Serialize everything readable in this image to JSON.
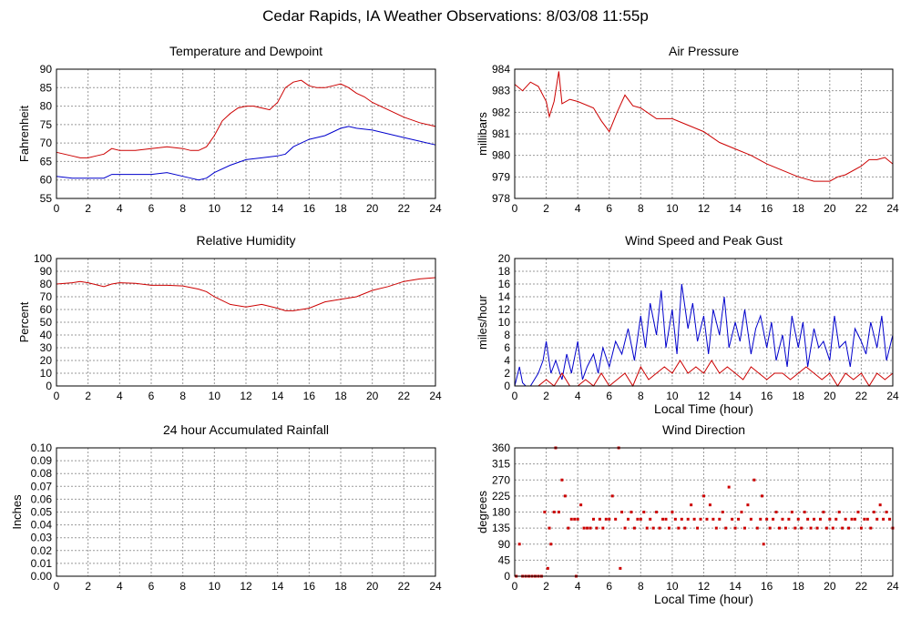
{
  "title": "Cedar Rapids, IA Weather Observations: 8/03/08 11:55p",
  "chart_data": [
    {
      "id": "temp",
      "type": "line",
      "title": "Temperature and Dewpoint",
      "xlabel": "",
      "ylabel": "Fahrenheit",
      "xlim": [
        0,
        24
      ],
      "ylim": [
        55,
        90
      ],
      "xticks": [
        0,
        2,
        4,
        6,
        8,
        10,
        12,
        14,
        16,
        18,
        20,
        22,
        24
      ],
      "yticks": [
        55,
        60,
        65,
        70,
        75,
        80,
        85,
        90
      ],
      "grid": true,
      "colors": {
        "series": [
          "#cc0000",
          "#0000cc"
        ]
      },
      "series": [
        {
          "color": "#cc0000",
          "x": [
            0,
            0.5,
            1,
            1.5,
            2,
            2.5,
            3,
            3.5,
            4,
            5,
            6,
            7,
            8,
            8.5,
            9,
            9.5,
            10,
            10.5,
            11,
            11.5,
            12,
            12.5,
            13,
            13.5,
            14,
            14.5,
            15,
            15.5,
            16,
            16.5,
            17,
            17.5,
            18,
            18.5,
            19,
            19.5,
            20,
            21,
            22,
            23,
            24
          ],
          "y": [
            67.5,
            67,
            66.5,
            66,
            66,
            66.5,
            67,
            68.5,
            68,
            68,
            68.5,
            69,
            68.5,
            68,
            68,
            69,
            72,
            76,
            78,
            79.5,
            80,
            80,
            79.5,
            79,
            81,
            85,
            86.5,
            87,
            85.5,
            85,
            85,
            85.5,
            86,
            85,
            83.5,
            82.5,
            81,
            79,
            77,
            75.5,
            74.5
          ]
        },
        {
          "color": "#0000cc",
          "x": [
            0,
            1,
            2,
            3,
            3.5,
            4,
            5,
            6,
            7,
            8,
            8.5,
            9,
            9.5,
            10,
            11,
            12,
            13,
            14,
            14.5,
            15,
            15.5,
            16,
            17,
            17.5,
            18,
            18.5,
            19,
            20,
            21,
            22,
            23,
            24
          ],
          "y": [
            61,
            60.5,
            60.5,
            60.5,
            61.5,
            61.5,
            61.5,
            61.5,
            62,
            61,
            60.5,
            60,
            60.5,
            62,
            64,
            65.5,
            66,
            66.5,
            67,
            69,
            70,
            71,
            72,
            73,
            74,
            74.5,
            74,
            73.5,
            72.5,
            71.5,
            70.5,
            69.5
          ]
        }
      ]
    },
    {
      "id": "pressure",
      "type": "line",
      "title": "Air Pressure",
      "xlabel": "",
      "ylabel": "millibars",
      "xlim": [
        0,
        24
      ],
      "ylim": [
        978,
        984
      ],
      "xticks": [
        0,
        2,
        4,
        6,
        8,
        10,
        12,
        14,
        16,
        18,
        20,
        22,
        24
      ],
      "yticks": [
        978,
        979,
        980,
        981,
        982,
        983,
        984
      ],
      "grid": true,
      "colors": {
        "series": [
          "#cc0000"
        ]
      },
      "series": [
        {
          "color": "#cc0000",
          "x": [
            0,
            0.5,
            1,
            1.5,
            2,
            2.2,
            2.5,
            2.8,
            3,
            3.5,
            4,
            5,
            5.5,
            6,
            6.5,
            7,
            7.5,
            8,
            9,
            10,
            11,
            12,
            13,
            14,
            15,
            16,
            17,
            18,
            18.5,
            19,
            20,
            20.5,
            21,
            22,
            22.5,
            23,
            23.5,
            24
          ],
          "y": [
            983.3,
            983,
            983.4,
            983.2,
            982.5,
            981.8,
            982.5,
            983.9,
            982.4,
            982.6,
            982.5,
            982.2,
            981.6,
            981.1,
            982,
            982.8,
            982.3,
            982.2,
            981.7,
            981.7,
            981.4,
            981.1,
            980.6,
            980.3,
            980,
            979.6,
            979.3,
            979,
            978.9,
            978.8,
            978.8,
            979,
            979.1,
            979.5,
            979.8,
            979.8,
            979.9,
            979.6
          ]
        }
      ]
    },
    {
      "id": "humidity",
      "type": "line",
      "title": "Relative Humidity",
      "xlabel": "",
      "ylabel": "Percent",
      "xlim": [
        0,
        24
      ],
      "ylim": [
        0,
        100
      ],
      "xticks": [
        0,
        2,
        4,
        6,
        8,
        10,
        12,
        14,
        16,
        18,
        20,
        22,
        24
      ],
      "yticks": [
        0,
        10,
        20,
        30,
        40,
        50,
        60,
        70,
        80,
        90,
        100
      ],
      "grid": true,
      "colors": {
        "series": [
          "#cc0000"
        ]
      },
      "series": [
        {
          "color": "#cc0000",
          "x": [
            0,
            1,
            1.5,
            2,
            3,
            3.5,
            4,
            5,
            6,
            7,
            8,
            9,
            9.5,
            10,
            11,
            12,
            13,
            14,
            14.5,
            15,
            16,
            17,
            18,
            19,
            20,
            21,
            22,
            23,
            24
          ],
          "y": [
            80,
            81,
            82,
            81,
            78,
            80,
            81,
            80.5,
            79,
            79,
            78.5,
            76,
            74,
            70,
            64,
            62,
            64,
            61,
            59,
            59,
            61,
            66,
            68,
            70,
            75,
            78,
            82,
            84,
            85
          ]
        }
      ]
    },
    {
      "id": "wind",
      "type": "line",
      "title": "Wind Speed and Peak Gust",
      "xlabel": "Local Time (hour)",
      "ylabel": "miles/hour",
      "xlim": [
        0,
        24
      ],
      "ylim": [
        0,
        20
      ],
      "xticks": [
        0,
        2,
        4,
        6,
        8,
        10,
        12,
        14,
        16,
        18,
        20,
        22,
        24
      ],
      "yticks": [
        0,
        2,
        4,
        6,
        8,
        10,
        12,
        14,
        16,
        18,
        20
      ],
      "grid": true,
      "colors": {
        "series": [
          "#0000cc",
          "#cc0000"
        ]
      },
      "series": [
        {
          "color": "#0000cc",
          "x": [
            0,
            0.3,
            0.5,
            0.7,
            1,
            1.5,
            1.8,
            2,
            2.3,
            2.6,
            3,
            3.3,
            3.6,
            4,
            4.3,
            4.6,
            5,
            5.3,
            5.6,
            6,
            6.4,
            6.8,
            7.2,
            7.6,
            8,
            8.3,
            8.6,
            9,
            9.3,
            9.6,
            10,
            10.3,
            10.6,
            11,
            11.3,
            11.6,
            12,
            12.3,
            12.6,
            13,
            13.3,
            13.6,
            14,
            14.3,
            14.6,
            15,
            15.3,
            15.6,
            16,
            16.3,
            16.6,
            17,
            17.3,
            17.6,
            18,
            18.3,
            18.6,
            19,
            19.3,
            19.6,
            20,
            20.3,
            20.6,
            21,
            21.3,
            21.6,
            22,
            22.3,
            22.6,
            23,
            23.3,
            23.6,
            24
          ],
          "y": [
            0,
            3,
            0.5,
            0,
            0,
            2,
            4,
            7,
            2,
            4,
            1,
            5,
            2,
            7,
            1,
            3,
            5,
            2,
            6,
            3,
            7,
            5,
            9,
            4,
            11,
            6,
            13,
            8,
            15,
            6,
            12,
            5,
            16,
            9,
            13,
            7,
            11,
            5,
            12,
            8,
            14,
            6,
            10,
            7,
            12,
            5,
            9,
            11,
            6,
            10,
            4,
            8,
            3,
            11,
            6,
            10,
            3,
            9,
            6,
            7,
            4,
            11,
            6,
            7,
            3,
            9,
            7,
            5,
            10,
            6,
            11,
            4,
            8
          ]
        },
        {
          "color": "#cc0000",
          "x": [
            0,
            1.5,
            2,
            2.5,
            3,
            3.5,
            4,
            4.5,
            5,
            5.5,
            6,
            6.5,
            7,
            7.5,
            8,
            8.5,
            9,
            9.5,
            10,
            10.5,
            11,
            11.5,
            12,
            12.5,
            13,
            13.5,
            14,
            14.5,
            15,
            15.5,
            16,
            16.5,
            17,
            17.5,
            18,
            18.5,
            19,
            19.5,
            20,
            20.5,
            21,
            21.5,
            22,
            22.5,
            23,
            23.5,
            24
          ],
          "y": [
            0,
            0,
            1,
            0,
            2,
            0,
            0,
            1,
            0,
            2,
            0,
            1,
            2,
            0,
            3,
            1,
            2,
            3,
            2,
            4,
            2,
            3,
            2,
            4,
            2,
            3,
            2,
            1,
            3,
            2,
            1,
            2,
            2,
            1,
            2,
            3,
            2,
            1,
            2,
            0,
            2,
            1,
            2,
            0,
            2,
            1,
            2
          ]
        }
      ]
    },
    {
      "id": "rain",
      "type": "line",
      "title": "24 hour Accumulated Rainfall",
      "xlabel": "",
      "ylabel": "Inches",
      "xlim": [
        0,
        24
      ],
      "ylim": [
        0,
        0.1
      ],
      "xticks": [
        0,
        2,
        4,
        6,
        8,
        10,
        12,
        14,
        16,
        18,
        20,
        22,
        24
      ],
      "yticks": [
        "0.00",
        "0.01",
        "0.02",
        "0.03",
        "0.04",
        "0.05",
        "0.06",
        "0.07",
        "0.08",
        "0.09",
        "0.10"
      ],
      "grid": true,
      "colors": {
        "series": [
          "#cc0000"
        ]
      },
      "series": [
        {
          "color": "#cc0000",
          "x": [
            0,
            24
          ],
          "y": [
            0,
            0
          ]
        }
      ]
    },
    {
      "id": "direction",
      "type": "scatter",
      "title": "Wind Direction",
      "xlabel": "Local Time (hour)",
      "ylabel": "degrees",
      "xlim": [
        0,
        24
      ],
      "ylim": [
        0,
        360
      ],
      "xticks": [
        0,
        2,
        4,
        6,
        8,
        10,
        12,
        14,
        16,
        18,
        20,
        22,
        24
      ],
      "yticks": [
        0,
        45,
        90,
        135,
        180,
        225,
        270,
        315,
        360
      ],
      "grid": true,
      "colors": {
        "series": [
          "#cc0000"
        ]
      },
      "series": [
        {
          "color": "#cc0000",
          "x": [
            0.1,
            0.3,
            0.5,
            0.7,
            0.9,
            1.1,
            1.3,
            1.5,
            1.7,
            1.9,
            2.1,
            2.2,
            2.3,
            2.5,
            2.6,
            2.8,
            3.0,
            3.2,
            3.4,
            3.6,
            3.8,
            3.9,
            4.0,
            4.2,
            4.4,
            4.6,
            4.8,
            5.0,
            5.2,
            5.4,
            5.6,
            5.8,
            6.0,
            6.2,
            6.4,
            6.6,
            6.7,
            6.8,
            7.0,
            7.2,
            7.4,
            7.6,
            7.8,
            8.0,
            8.2,
            8.4,
            8.6,
            8.8,
            9.0,
            9.2,
            9.4,
            9.6,
            9.8,
            10.0,
            10.2,
            10.4,
            10.6,
            10.8,
            11.0,
            11.2,
            11.4,
            11.6,
            11.8,
            12.0,
            12.2,
            12.4,
            12.6,
            12.8,
            13.0,
            13.2,
            13.4,
            13.6,
            13.8,
            14.0,
            14.2,
            14.4,
            14.6,
            14.8,
            15.0,
            15.2,
            15.4,
            15.6,
            15.7,
            15.8,
            16.0,
            16.2,
            16.4,
            16.6,
            16.8,
            17.0,
            17.2,
            17.4,
            17.6,
            17.8,
            18.0,
            18.2,
            18.4,
            18.6,
            18.8,
            19.0,
            19.2,
            19.4,
            19.6,
            19.8,
            20.0,
            20.2,
            20.4,
            20.6,
            20.8,
            21.0,
            21.2,
            21.4,
            21.6,
            21.8,
            22.0,
            22.2,
            22.4,
            22.6,
            22.8,
            23.0,
            23.2,
            23.4,
            23.6,
            23.8,
            24.0
          ],
          "y": [
            0,
            90,
            0,
            0,
            0,
            0,
            0,
            0,
            0,
            180,
            22,
            135,
            90,
            180,
            360,
            180,
            270,
            225,
            135,
            160,
            160,
            0,
            160,
            200,
            135,
            135,
            135,
            160,
            135,
            160,
            135,
            160,
            160,
            225,
            160,
            360,
            22,
            180,
            135,
            160,
            180,
            135,
            160,
            160,
            180,
            135,
            160,
            135,
            180,
            135,
            160,
            160,
            135,
            180,
            160,
            135,
            160,
            135,
            160,
            200,
            160,
            135,
            160,
            225,
            160,
            200,
            160,
            135,
            160,
            180,
            135,
            250,
            160,
            135,
            160,
            180,
            135,
            200,
            160,
            270,
            135,
            160,
            225,
            90,
            160,
            135,
            160,
            180,
            135,
            160,
            135,
            160,
            180,
            135,
            160,
            135,
            180,
            160,
            135,
            160,
            135,
            160,
            180,
            135,
            160,
            135,
            160,
            180,
            135,
            160,
            135,
            160,
            160,
            180,
            135,
            160,
            160,
            135,
            180,
            160,
            200,
            160,
            180,
            160,
            135
          ]
        }
      ]
    }
  ]
}
